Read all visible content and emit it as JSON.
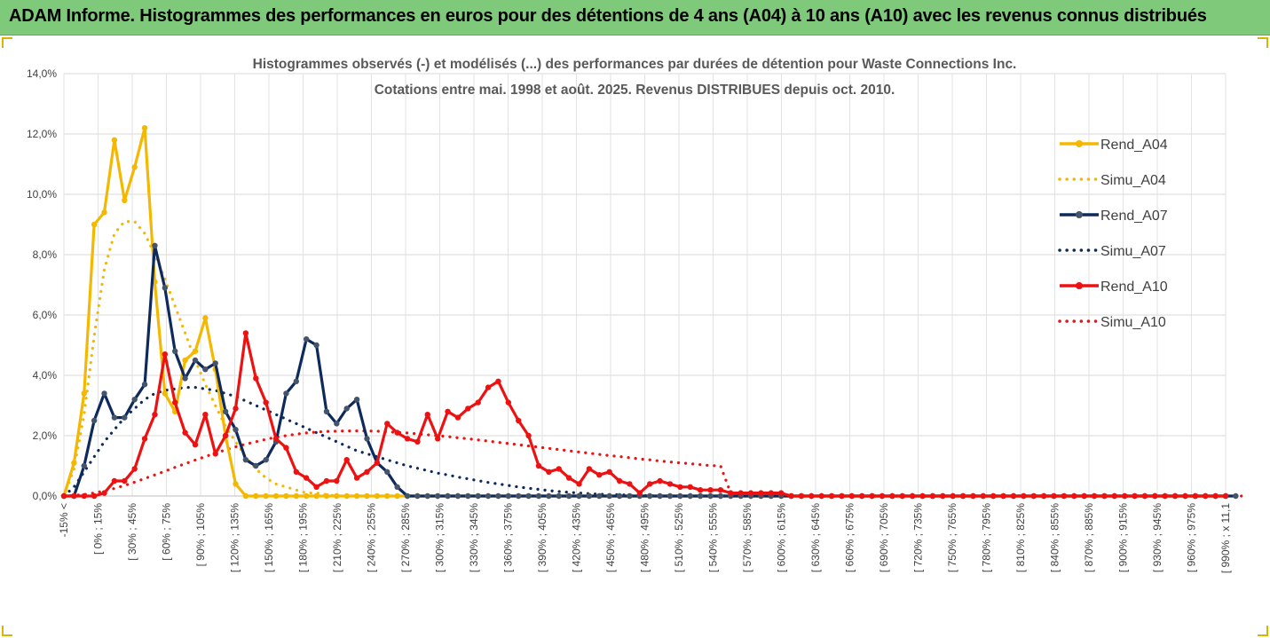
{
  "header": {
    "title": "ADAM Informe. Histogrammes des performances en euros pour des détentions de 4 ans (A04) à 10 ans (A10) avec les revenus connus distribués"
  },
  "colors": {
    "header_bg": "#7ec97a",
    "A04": "#f5b800",
    "A07": "#0e2a5c",
    "A10": "#ee1111",
    "grid": "#d9d9d9"
  },
  "chart_data": {
    "type": "line",
    "title": "Histogrammes observés (-) et modélisés (...) des performances par durées de détention pour Waste Connections Inc.",
    "subtitle": "Cotations entre mai. 1998 et août. 2025. Revenus DISTRIBUES depuis oct. 2010.",
    "legend_position": "right",
    "grid": true,
    "ylim": [
      0,
      14
    ],
    "y_ticks": [
      "0,0%",
      "2,0%",
      "4,0%",
      "6,0%",
      "8,0%",
      "10,0%",
      "12,0%",
      "14,0%"
    ],
    "x_tick_labels": [
      "-15% <",
      "[ 0% ; 15%",
      "[ 30% ; 45%",
      "[ 60% ; 75%",
      "[ 90% ; 105%",
      "[ 120% ; 135%",
      "[ 150% ; 165%",
      "[ 180% ; 195%",
      "[ 210% ; 225%",
      "[ 240% ; 255%",
      "[ 270% ; 285%",
      "[ 300% ; 315%",
      "[ 330% ; 345%",
      "[ 360% ; 375%",
      "[ 390% ; 405%",
      "[ 420% ; 435%",
      "[ 450% ; 465%",
      "[ 480% ; 495%",
      "[ 510% ; 525%",
      "[ 540% ; 555%",
      "[ 570% ; 585%",
      "[ 600% ; 615%",
      "[ 630% ; 645%",
      "[ 660% ; 675%",
      "[ 690% ; 705%",
      "[ 720% ; 735%",
      "[ 750% ; 765%",
      "[ 780% ; 795%",
      "[ 810% ; 825%",
      "[ 840% ; 855%",
      "[ 870% ; 885%",
      "[ 900% ; 915%",
      "[ 930% ; 945%",
      "[ 960% ; 975%",
      "[ 990% ; x 11,1"
    ],
    "series": [
      {
        "name": "Rend_A04",
        "style": "solid",
        "color": "#f5b800",
        "values": [
          0,
          1.1,
          3.4,
          9.0,
          9.4,
          11.8,
          9.8,
          10.9,
          12.2,
          7.1,
          3.4,
          2.8,
          4.5,
          4.8,
          5.9,
          4.2,
          2.0,
          0.4,
          0,
          0,
          0,
          0,
          0,
          0,
          0,
          0,
          0,
          0,
          0,
          0,
          0,
          0,
          0,
          0,
          0,
          0,
          0,
          0,
          0,
          0,
          0,
          0,
          0,
          0,
          0,
          0,
          0,
          0,
          0,
          0,
          0,
          0,
          0,
          0,
          0,
          0,
          0,
          0,
          0,
          0,
          0,
          0,
          0,
          0,
          0,
          0,
          0,
          0,
          0,
          0,
          0,
          0,
          0,
          0,
          0,
          0,
          0,
          0,
          0,
          0,
          0,
          0,
          0,
          0,
          0,
          0,
          0,
          0,
          0,
          0,
          0,
          0,
          0,
          0,
          0,
          0,
          0,
          0,
          0,
          0,
          0,
          0,
          0,
          0,
          0,
          0,
          0,
          0,
          0,
          0,
          0,
          0,
          0,
          0,
          0,
          0
        ]
      },
      {
        "name": "Simu_A04",
        "style": "dotted",
        "color": "#f5b800",
        "values": [
          0,
          0.9,
          2.7,
          5.3,
          7.5,
          8.7,
          9.1,
          9.1,
          8.7,
          8.0,
          7.2,
          6.3,
          5.4,
          4.5,
          3.7,
          3.0,
          2.3,
          1.8,
          1.3,
          0.9,
          0.6,
          0.4,
          0.3,
          0.2,
          0.1,
          0.1,
          0.05,
          0,
          0,
          0,
          0,
          0,
          0,
          0,
          0,
          0,
          0,
          0,
          0,
          0,
          0,
          0,
          0,
          0,
          0,
          0,
          0,
          0,
          0,
          0,
          0,
          0,
          0,
          0,
          0,
          0,
          0,
          0,
          0,
          0,
          0,
          0,
          0,
          0,
          0,
          0,
          0,
          0,
          0,
          0,
          0,
          0,
          0,
          0,
          0,
          0,
          0,
          0,
          0,
          0,
          0,
          0,
          0,
          0,
          0,
          0,
          0,
          0,
          0,
          0,
          0,
          0,
          0,
          0,
          0,
          0,
          0,
          0,
          0,
          0,
          0,
          0,
          0,
          0,
          0,
          0,
          0,
          0,
          0,
          0,
          0,
          0,
          0,
          0,
          0,
          0,
          0
        ]
      },
      {
        "name": "Rend_A07",
        "style": "solid",
        "color": "#0e2a5c",
        "values": [
          0,
          0,
          1.0,
          2.5,
          3.4,
          2.6,
          2.6,
          3.2,
          3.7,
          8.3,
          6.9,
          4.8,
          3.9,
          4.5,
          4.2,
          4.4,
          2.8,
          2.2,
          1.2,
          1.0,
          1.2,
          1.8,
          3.4,
          3.8,
          5.2,
          5.0,
          2.8,
          2.4,
          2.9,
          3.2,
          1.9,
          1.1,
          0.8,
          0.3,
          0,
          0,
          0,
          0,
          0,
          0,
          0,
          0,
          0,
          0,
          0,
          0,
          0,
          0,
          0,
          0,
          0,
          0,
          0,
          0,
          0,
          0,
          0,
          0,
          0,
          0,
          0,
          0,
          0,
          0,
          0,
          0,
          0,
          0,
          0,
          0,
          0,
          0,
          0,
          0,
          0,
          0,
          0,
          0,
          0,
          0,
          0,
          0,
          0,
          0,
          0,
          0,
          0,
          0,
          0,
          0,
          0,
          0,
          0,
          0,
          0,
          0,
          0,
          0,
          0,
          0,
          0,
          0,
          0,
          0,
          0,
          0,
          0,
          0,
          0,
          0,
          0,
          0,
          0,
          0,
          0,
          0,
          0
        ]
      },
      {
        "name": "Simu_A07",
        "style": "dotted",
        "color": "#0e2a5c",
        "values": [
          0,
          0.3,
          0.8,
          1.3,
          1.8,
          2.2,
          2.6,
          2.9,
          3.2,
          3.4,
          3.5,
          3.55,
          3.6,
          3.6,
          3.55,
          3.5,
          3.4,
          3.3,
          3.15,
          3.0,
          2.85,
          2.7,
          2.55,
          2.4,
          2.25,
          2.1,
          1.95,
          1.8,
          1.65,
          1.5,
          1.4,
          1.3,
          1.2,
          1.1,
          1.0,
          0.92,
          0.84,
          0.76,
          0.7,
          0.63,
          0.57,
          0.51,
          0.45,
          0.4,
          0.35,
          0.3,
          0.26,
          0.22,
          0.18,
          0.15,
          0.12,
          0.1,
          0.08,
          0.06,
          0.05,
          0.04,
          0.03,
          0.02,
          0.01,
          0,
          0,
          0,
          0,
          0,
          0,
          0,
          0,
          0,
          0,
          0,
          0,
          0,
          0,
          0,
          0,
          0,
          0,
          0,
          0,
          0,
          0,
          0,
          0,
          0,
          0,
          0,
          0,
          0,
          0,
          0,
          0,
          0,
          0,
          0,
          0,
          0,
          0,
          0,
          0,
          0,
          0,
          0,
          0,
          0,
          0,
          0,
          0,
          0,
          0,
          0,
          0,
          0,
          0,
          0,
          0
        ]
      },
      {
        "name": "Rend_A10",
        "style": "solid",
        "color": "#ee1111",
        "values": [
          0,
          0,
          0,
          0,
          0.1,
          0.5,
          0.5,
          0.9,
          1.9,
          2.7,
          4.7,
          3.1,
          2.1,
          1.7,
          2.7,
          1.4,
          2.0,
          2.9,
          5.4,
          3.9,
          3.1,
          1.9,
          1.6,
          0.8,
          0.6,
          0.3,
          0.5,
          0.5,
          1.2,
          0.6,
          0.8,
          1.1,
          2.4,
          2.1,
          1.9,
          1.8,
          2.7,
          1.9,
          2.8,
          2.6,
          2.9,
          3.1,
          3.6,
          3.8,
          3.1,
          2.5,
          2.0,
          1.0,
          0.8,
          0.9,
          0.6,
          0.4,
          0.9,
          0.7,
          0.8,
          0.5,
          0.4,
          0.1,
          0.4,
          0.5,
          0.4,
          0.3,
          0.3,
          0.2,
          0.2,
          0.2,
          0.1,
          0.1,
          0.1,
          0.1,
          0.1,
          0.1,
          0,
          0,
          0,
          0,
          0,
          0,
          0,
          0,
          0,
          0,
          0,
          0,
          0,
          0,
          0,
          0,
          0,
          0,
          0,
          0,
          0,
          0,
          0,
          0,
          0,
          0,
          0,
          0,
          0,
          0,
          0,
          0,
          0,
          0,
          0,
          0,
          0,
          0,
          0,
          0,
          0,
          0,
          0,
          0
        ]
      },
      {
        "name": "Simu_A10",
        "style": "dotted",
        "color": "#ee1111",
        "values": [
          0,
          0.02,
          0.05,
          0.1,
          0.17,
          0.25,
          0.35,
          0.46,
          0.58,
          0.7,
          0.82,
          0.95,
          1.07,
          1.19,
          1.31,
          1.42,
          1.53,
          1.63,
          1.72,
          1.8,
          1.88,
          1.95,
          2.0,
          2.05,
          2.09,
          2.12,
          2.14,
          2.15,
          2.16,
          2.16,
          2.16,
          2.15,
          2.13,
          2.11,
          2.09,
          2.06,
          2.03,
          2.0,
          1.97,
          1.93,
          1.9,
          1.86,
          1.82,
          1.78,
          1.74,
          1.7,
          1.66,
          1.62,
          1.58,
          1.54,
          1.5,
          1.46,
          1.42,
          1.38,
          1.34,
          1.31,
          1.27,
          1.23,
          1.2,
          1.16,
          1.13,
          1.1,
          1.07,
          1.04,
          1.01,
          1.0,
          0.1,
          0,
          0,
          0,
          0,
          0,
          0,
          0,
          0,
          0,
          0,
          0,
          0,
          0,
          0,
          0,
          0,
          0,
          0,
          0,
          0,
          0,
          0,
          0,
          0,
          0,
          0,
          0,
          0,
          0,
          0,
          0,
          0,
          0,
          0,
          0,
          0,
          0,
          0,
          0,
          0,
          0,
          0,
          0,
          0,
          0,
          0,
          0,
          0,
          0,
          0,
          0
        ]
      }
    ]
  }
}
